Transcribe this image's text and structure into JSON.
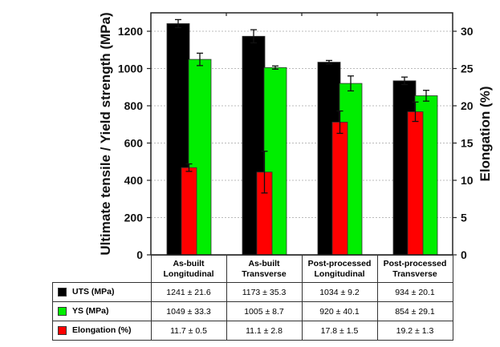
{
  "chart_data": {
    "type": "bar",
    "title": "",
    "categories": [
      "As-built Longitudinal",
      "As-built Transverse",
      "Post-processed Longitudinal",
      "Post-processed Transverse"
    ],
    "category_lines": [
      [
        "As-built",
        "Longitudinal"
      ],
      [
        "As-built",
        "Transverse"
      ],
      [
        "Post-processed",
        "Longitudinal"
      ],
      [
        "Post-processed",
        "Transverse"
      ]
    ],
    "ylabel": "Ultimate tensile / Yield strength (MPa)",
    "y2label": "Elongation (%)",
    "ylim": [
      0,
      1300
    ],
    "y2lim": [
      0,
      32.5
    ],
    "yticks": [
      0,
      200,
      400,
      600,
      800,
      1000,
      1200
    ],
    "y2ticks": [
      0,
      5,
      10,
      15,
      20,
      25,
      30
    ],
    "grid": true,
    "legend": "table-below",
    "series": [
      {
        "name": "UTS (MPa)",
        "axis": "left",
        "color": "#000000",
        "values": [
          1241,
          1173,
          1034,
          934
        ],
        "errors": [
          21.6,
          35.3,
          9.2,
          20.1
        ],
        "labels": [
          "1241 ± 21.6",
          "1173 ± 35.3",
          "1034 ± 9.2",
          "934 ± 20.1"
        ]
      },
      {
        "name": "YS (MPa)",
        "axis": "left",
        "color": "#00ee00",
        "values": [
          1049,
          1005,
          920,
          854
        ],
        "errors": [
          33.3,
          8.7,
          40.1,
          29.1
        ],
        "labels": [
          "1049 ± 33.3",
          "1005 ± 8.7",
          "920 ± 40.1",
          "854 ± 29.1"
        ]
      },
      {
        "name": "Elongation (%)",
        "axis": "right",
        "color": "#ff0000",
        "values": [
          11.7,
          11.1,
          17.8,
          19.2
        ],
        "errors": [
          0.5,
          2.8,
          1.5,
          1.3
        ],
        "labels": [
          "11.7 ± 0.5",
          "11.1 ± 2.8",
          "17.8 ± 1.5",
          "19.2 ± 1.3"
        ]
      }
    ]
  }
}
